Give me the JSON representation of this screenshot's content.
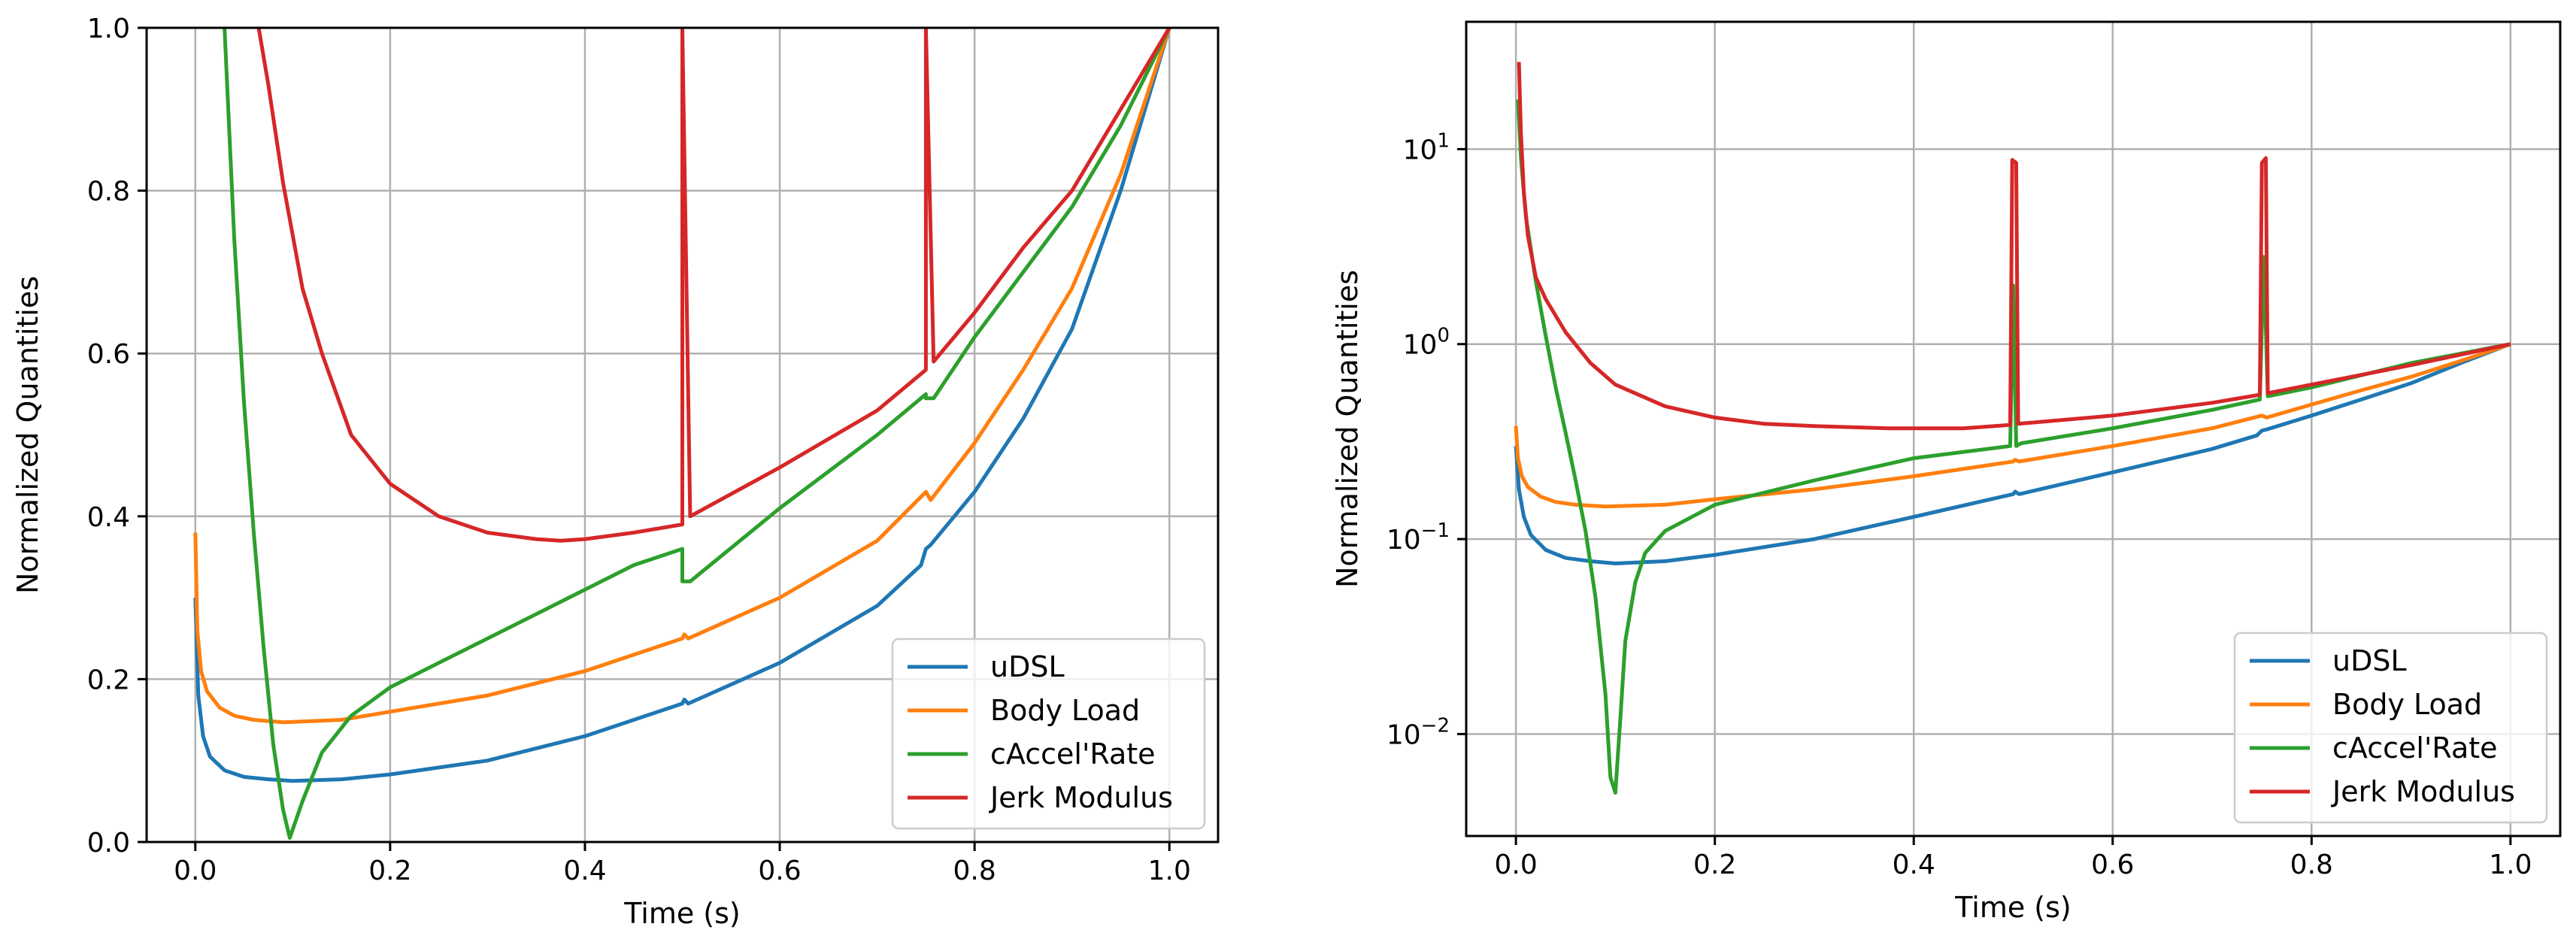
{
  "colors": {
    "uDSL": "#1f77b4",
    "Body Load": "#ff7f0e",
    "cAccel'Rate": "#2ca02c",
    "Jerk Modulus": "#d62728",
    "grid": "#b0b0b0",
    "axes": "#000000"
  },
  "chart_data": [
    {
      "type": "line",
      "yscale": "linear",
      "xlabel": "Time (s)",
      "ylabel": "Normalized Quantities",
      "xlim": [
        -0.05,
        1.05
      ],
      "ylim": [
        0.0,
        1.0
      ],
      "xticks": [
        0.0,
        0.2,
        0.4,
        0.6,
        0.8,
        1.0
      ],
      "xtick_labels": [
        "0.0",
        "0.2",
        "0.4",
        "0.6",
        "0.8",
        "1.0"
      ],
      "yticks": [
        0.0,
        0.2,
        0.4,
        0.6,
        0.8,
        1.0
      ],
      "ytick_labels": [
        "0.0",
        "0.2",
        "0.4",
        "0.6",
        "0.8",
        "1.0"
      ],
      "grid": true,
      "legend": "lower-right",
      "series": [
        {
          "name": "uDSL",
          "x": [
            0.0,
            0.003,
            0.008,
            0.015,
            0.03,
            0.05,
            0.075,
            0.1,
            0.15,
            0.2,
            0.3,
            0.4,
            0.5,
            0.502,
            0.506,
            0.6,
            0.7,
            0.745,
            0.75,
            0.755,
            0.8,
            0.85,
            0.9,
            0.95,
            1.0
          ],
          "y": [
            0.3,
            0.18,
            0.13,
            0.105,
            0.088,
            0.08,
            0.077,
            0.075,
            0.077,
            0.083,
            0.1,
            0.13,
            0.17,
            0.175,
            0.17,
            0.22,
            0.29,
            0.34,
            0.36,
            0.365,
            0.43,
            0.52,
            0.63,
            0.8,
            1.0
          ]
        },
        {
          "name": "Body Load",
          "x": [
            0.0,
            0.002,
            0.006,
            0.012,
            0.025,
            0.04,
            0.06,
            0.09,
            0.15,
            0.2,
            0.3,
            0.4,
            0.5,
            0.502,
            0.506,
            0.6,
            0.7,
            0.75,
            0.755,
            0.8,
            0.85,
            0.9,
            0.95,
            1.0
          ],
          "y": [
            0.38,
            0.26,
            0.21,
            0.185,
            0.165,
            0.155,
            0.15,
            0.147,
            0.15,
            0.16,
            0.18,
            0.21,
            0.25,
            0.255,
            0.25,
            0.3,
            0.37,
            0.43,
            0.42,
            0.49,
            0.58,
            0.68,
            0.82,
            1.0
          ]
        },
        {
          "name": "cAccel'Rate",
          "x": [
            0.03,
            0.04,
            0.05,
            0.06,
            0.07,
            0.08,
            0.09,
            0.097,
            0.11,
            0.13,
            0.16,
            0.2,
            0.25,
            0.3,
            0.35,
            0.4,
            0.45,
            0.5,
            0.5,
            0.508,
            0.6,
            0.7,
            0.75,
            0.75,
            0.758,
            0.8,
            0.85,
            0.9,
            0.95,
            1.0
          ],
          "y": [
            1.0,
            0.74,
            0.54,
            0.38,
            0.24,
            0.12,
            0.04,
            0.005,
            0.05,
            0.11,
            0.155,
            0.19,
            0.22,
            0.25,
            0.28,
            0.31,
            0.34,
            0.36,
            0.32,
            0.32,
            0.41,
            0.5,
            0.55,
            0.545,
            0.545,
            0.62,
            0.7,
            0.78,
            0.88,
            1.0
          ]
        },
        {
          "name": "Jerk Modulus",
          "x": [
            0.065,
            0.075,
            0.09,
            0.11,
            0.13,
            0.16,
            0.2,
            0.25,
            0.3,
            0.35,
            0.375,
            0.4,
            0.45,
            0.5,
            0.5,
            0.508,
            0.6,
            0.7,
            0.75,
            0.75,
            0.758,
            0.8,
            0.85,
            0.9,
            0.95,
            1.0
          ],
          "y": [
            1.0,
            0.93,
            0.81,
            0.68,
            0.6,
            0.5,
            0.44,
            0.4,
            0.38,
            0.372,
            0.37,
            0.372,
            0.38,
            0.39,
            1.0,
            0.4,
            0.46,
            0.53,
            0.58,
            1.0,
            0.59,
            0.65,
            0.73,
            0.8,
            0.9,
            1.0
          ]
        }
      ]
    },
    {
      "type": "line",
      "yscale": "log",
      "xlabel": "Time (s)",
      "ylabel": "Normalized Quantities",
      "xlim": [
        -0.05,
        1.05
      ],
      "ylim": [
        0.003,
        45
      ],
      "xticks": [
        0.0,
        0.2,
        0.4,
        0.6,
        0.8,
        1.0
      ],
      "xtick_labels": [
        "0.0",
        "0.2",
        "0.4",
        "0.6",
        "0.8",
        "1.0"
      ],
      "yticks": [
        0.01,
        0.1,
        1,
        10
      ],
      "ytick_labels": [
        "10^-2",
        "10^-1",
        "10^0",
        "10^1"
      ],
      "grid": true,
      "legend": "lower-right",
      "series": [
        {
          "name": "uDSL",
          "x": [
            0.0,
            0.003,
            0.008,
            0.015,
            0.03,
            0.05,
            0.075,
            0.1,
            0.15,
            0.2,
            0.3,
            0.4,
            0.5,
            0.502,
            0.506,
            0.6,
            0.7,
            0.745,
            0.75,
            0.755,
            0.8,
            0.85,
            0.9,
            0.95,
            1.0
          ],
          "y": [
            0.3,
            0.18,
            0.13,
            0.105,
            0.088,
            0.08,
            0.077,
            0.075,
            0.077,
            0.083,
            0.1,
            0.13,
            0.17,
            0.175,
            0.17,
            0.22,
            0.29,
            0.34,
            0.36,
            0.365,
            0.43,
            0.52,
            0.63,
            0.8,
            1.0
          ]
        },
        {
          "name": "Body Load",
          "x": [
            0.0,
            0.002,
            0.006,
            0.012,
            0.025,
            0.04,
            0.06,
            0.09,
            0.15,
            0.2,
            0.3,
            0.4,
            0.5,
            0.502,
            0.506,
            0.6,
            0.7,
            0.75,
            0.755,
            0.8,
            0.85,
            0.9,
            0.95,
            1.0
          ],
          "y": [
            0.38,
            0.26,
            0.21,
            0.185,
            0.165,
            0.155,
            0.15,
            0.147,
            0.15,
            0.16,
            0.18,
            0.21,
            0.25,
            0.255,
            0.25,
            0.3,
            0.37,
            0.43,
            0.42,
            0.49,
            0.58,
            0.68,
            0.82,
            1.0
          ]
        },
        {
          "name": "cAccel'Rate",
          "x": [
            0.002,
            0.005,
            0.01,
            0.02,
            0.03,
            0.04,
            0.05,
            0.06,
            0.07,
            0.08,
            0.09,
            0.095,
            0.1,
            0.105,
            0.11,
            0.12,
            0.13,
            0.15,
            0.2,
            0.3,
            0.4,
            0.497,
            0.5,
            0.503,
            0.508,
            0.6,
            0.7,
            0.748,
            0.752,
            0.756,
            0.8,
            0.9,
            1.0
          ],
          "y": [
            18,
            9,
            4.5,
            2.1,
            1.1,
            0.6,
            0.35,
            0.2,
            0.11,
            0.05,
            0.016,
            0.006,
            0.005,
            0.012,
            0.03,
            0.06,
            0.085,
            0.11,
            0.15,
            0.2,
            0.26,
            0.3,
            2.0,
            0.3,
            0.31,
            0.37,
            0.46,
            0.52,
            2.8,
            0.54,
            0.6,
            0.8,
            1.0
          ]
        },
        {
          "name": "Jerk Modulus",
          "x": [
            0.003,
            0.005,
            0.008,
            0.012,
            0.02,
            0.03,
            0.05,
            0.075,
            0.1,
            0.15,
            0.2,
            0.25,
            0.3,
            0.375,
            0.45,
            0.497,
            0.499,
            0.503,
            0.505,
            0.6,
            0.7,
            0.748,
            0.75,
            0.754,
            0.756,
            0.8,
            0.9,
            1.0
          ],
          "y": [
            28,
            12,
            6,
            3.6,
            2.2,
            1.7,
            1.15,
            0.8,
            0.62,
            0.48,
            0.42,
            0.39,
            0.38,
            0.37,
            0.37,
            0.385,
            8.8,
            8.5,
            0.39,
            0.43,
            0.5,
            0.55,
            8.5,
            9.0,
            0.56,
            0.62,
            0.78,
            1.0
          ]
        }
      ]
    }
  ]
}
